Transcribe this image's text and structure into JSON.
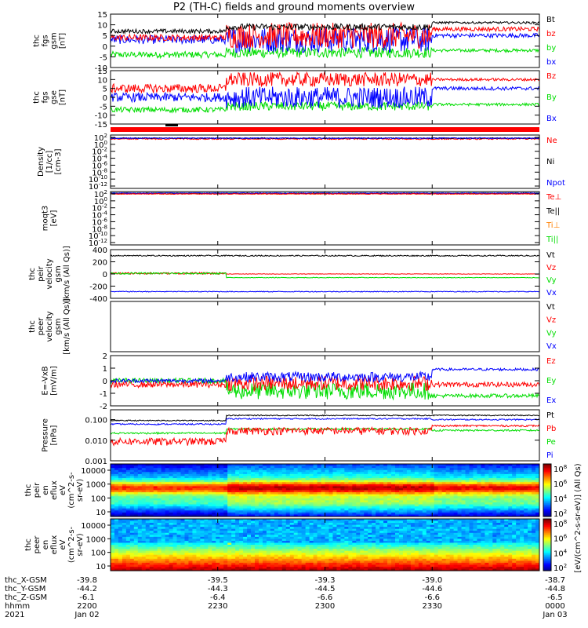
{
  "title": "P2 (TH-C) fields and ground moments overview",
  "colors": {
    "black": "#000000",
    "red": "#ff0000",
    "green": "#00dd00",
    "blue": "#0000ff",
    "orange": "#ff8000"
  },
  "chart_data": [
    {
      "type": "line",
      "panel": "fgs_gsm",
      "ylabel": [
        "thc",
        "fgs",
        "gsm",
        "[nT]"
      ],
      "ylim": [
        -10,
        15
      ],
      "yticks": [
        15,
        10,
        5,
        0,
        -5,
        -10
      ],
      "series": [
        {
          "name": "Bt",
          "color": "#000000"
        },
        {
          "name": "bz",
          "color": "#ff0000"
        },
        {
          "name": "by",
          "color": "#00dd00"
        },
        {
          "name": "bx",
          "color": "#0000ff"
        }
      ]
    },
    {
      "type": "line",
      "panel": "fgs_gse",
      "ylabel": [
        "thc",
        "fgs",
        "gse",
        "[nT]"
      ],
      "ylim": [
        -15,
        15
      ],
      "yticks": [
        15,
        10,
        5,
        0,
        -5,
        -10,
        -15
      ],
      "series": [
        {
          "name": "Bz",
          "color": "#ff0000"
        },
        {
          "name": "By",
          "color": "#00dd00"
        },
        {
          "name": "Bx",
          "color": "#0000ff"
        }
      ]
    },
    {
      "type": "line",
      "panel": "density",
      "ylabel": [
        "Density",
        "[1/cc]",
        "[cm-3]"
      ],
      "scale": "log",
      "ylim": [
        1e-12,
        100.0
      ],
      "yticks": [
        "10^2",
        "10^0",
        "10^-2",
        "10^-4",
        "10^-6",
        "10^-8",
        "10^-10",
        "10^-12"
      ],
      "series": [
        {
          "name": "Ne",
          "color": "#ff0000"
        },
        {
          "name": "Ni",
          "color": "#000000"
        },
        {
          "name": "Npot",
          "color": "#0000ff"
        }
      ]
    },
    {
      "type": "line",
      "panel": "temperature",
      "ylabel": [
        "moqt3",
        "[eV]"
      ],
      "scale": "log",
      "ylim": [
        1e-12,
        100.0
      ],
      "yticks": [
        "10^2",
        "10^0",
        "10^-2",
        "10^-4",
        "10^-6",
        "10^-8",
        "10^-10",
        "10^-12"
      ],
      "series": [
        {
          "name": "Te⊥",
          "color": "#ff0000"
        },
        {
          "name": "Te||",
          "color": "#000000"
        },
        {
          "name": "Ti⊥",
          "color": "#ff8000"
        },
        {
          "name": "Ti||",
          "color": "#00dd00"
        }
      ]
    },
    {
      "type": "line",
      "panel": "peir_velocity",
      "ylabel": [
        "thc",
        "peir",
        "velocity",
        "gsm",
        "[km/s (All Qs)]"
      ],
      "ylim": [
        -400,
        400
      ],
      "yticks": [
        400,
        200,
        0,
        -200,
        -400
      ],
      "series": [
        {
          "name": "Vt",
          "color": "#000000",
          "level": 300
        },
        {
          "name": "Vz",
          "color": "#ff0000",
          "level": 0
        },
        {
          "name": "Vy",
          "color": "#00dd00",
          "level": -20
        },
        {
          "name": "Vx",
          "color": "#0000ff",
          "level": -300
        }
      ]
    },
    {
      "type": "line",
      "panel": "peer_velocity",
      "ylabel": [
        "thc",
        "peer",
        "velocity",
        "gsm",
        "[km/s (All Qs)]"
      ],
      "series": [
        {
          "name": "Vt",
          "color": "#000000"
        },
        {
          "name": "Vz",
          "color": "#ff0000"
        },
        {
          "name": "Vy",
          "color": "#00dd00"
        },
        {
          "name": "Vx",
          "color": "#0000ff"
        }
      ]
    },
    {
      "type": "line",
      "panel": "efield",
      "ylabel": [
        "E=-VxB",
        "[mV/m]"
      ],
      "ylim": [
        -2,
        2
      ],
      "yticks": [
        2,
        1,
        0,
        -1,
        -2
      ],
      "series": [
        {
          "name": "Ez",
          "color": "#ff0000"
        },
        {
          "name": "Ey",
          "color": "#00dd00"
        },
        {
          "name": "Ex",
          "color": "#0000ff"
        }
      ]
    },
    {
      "type": "line",
      "panel": "pressure",
      "ylabel": [
        "Pressure",
        "[nPa]"
      ],
      "scale": "log",
      "ylim": [
        0.001,
        0.3
      ],
      "yticks": [
        "0.100",
        "0.010",
        "0.001"
      ],
      "series": [
        {
          "name": "Pt",
          "color": "#000000"
        },
        {
          "name": "Pb",
          "color": "#ff0000"
        },
        {
          "name": "Pe",
          "color": "#00dd00"
        },
        {
          "name": "Pi",
          "color": "#0000ff"
        }
      ]
    },
    {
      "type": "heatmap",
      "panel": "peir_spectrum",
      "ylabel": [
        "thc",
        "peir",
        "en",
        "eflux",
        "eV",
        "(cm^2-s-",
        "sr-eV)"
      ],
      "scale": "log",
      "yticks": [
        "10000",
        "1000",
        "100",
        "10"
      ],
      "colorbar": {
        "label": "[eV/(cm^2-s-sr-eV)] (All Qs)",
        "ticks": [
          "10^8",
          "10^6",
          "10^4",
          "10^2"
        ]
      }
    },
    {
      "type": "heatmap",
      "panel": "peer_spectrum",
      "ylabel": [
        "thc",
        "peer",
        "en",
        "eflux",
        "eV",
        "(cm^2-s-",
        "sr-eV)"
      ],
      "scale": "log",
      "yticks": [
        "10000",
        "1000",
        "100",
        "10"
      ],
      "colorbar": {
        "ticks": [
          "10^8",
          "10^6",
          "10^4",
          "10^2"
        ]
      }
    }
  ],
  "xaxis": {
    "ticks": [
      {
        "x": "-39.8",
        "y": "-44.2",
        "z": "-6.1",
        "hhmm": "2200",
        "date": "Jan 02"
      },
      {
        "x": "-39.5",
        "y": "-44.3",
        "z": "-6.4",
        "hhmm": "2230",
        "date": ""
      },
      {
        "x": "-39.3",
        "y": "-44.5",
        "z": "-6.6",
        "hhmm": "2300",
        "date": ""
      },
      {
        "x": "-39.0",
        "y": "-44.6",
        "z": "-6.6",
        "hhmm": "2330",
        "date": ""
      },
      {
        "x": "-38.7",
        "y": "-44.8",
        "z": "-6.5",
        "hhmm": "0000",
        "date": "Jan 03"
      }
    ],
    "row_labels": [
      "thc_X-GSM",
      "thc_Y-GSM",
      "thc_Z-GSM",
      "hhmm",
      "2021"
    ]
  }
}
